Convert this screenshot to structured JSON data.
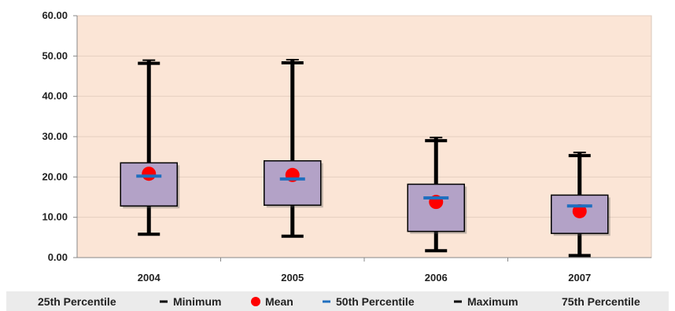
{
  "chart_data": {
    "type": "box",
    "title": "",
    "xlabel": "",
    "ylabel": "",
    "categories": [
      "2004",
      "2005",
      "2006",
      "2007"
    ],
    "ylim": [
      0,
      60
    ],
    "yticks": [
      "0.00",
      "10.00",
      "20.00",
      "30.00",
      "40.00",
      "50.00",
      "60.00"
    ],
    "grid": true,
    "legend_position": "bottom",
    "series": [
      {
        "name": "25th Percentile",
        "values": [
          12.8,
          13.0,
          6.5,
          6.0
        ]
      },
      {
        "name": "Minimum",
        "values": [
          5.8,
          5.3,
          1.7,
          0.5
        ]
      },
      {
        "name": "Mean",
        "values": [
          20.8,
          20.5,
          13.8,
          11.5
        ]
      },
      {
        "name": "50th Percentile",
        "values": [
          20.2,
          19.5,
          14.8,
          12.8
        ]
      },
      {
        "name": "Maximum",
        "values": [
          48.2,
          48.3,
          29.0,
          25.3
        ]
      },
      {
        "name": "75th Percentile",
        "values": [
          23.5,
          24.0,
          18.2,
          15.5
        ]
      }
    ],
    "colors": {
      "plot_background": "#fbe5d6",
      "box_fill": "#b3a2c7",
      "whisker": "#000000",
      "mean": "#ff0000",
      "median": "#1f6fbf",
      "legend_background": "#ebebeb"
    }
  }
}
